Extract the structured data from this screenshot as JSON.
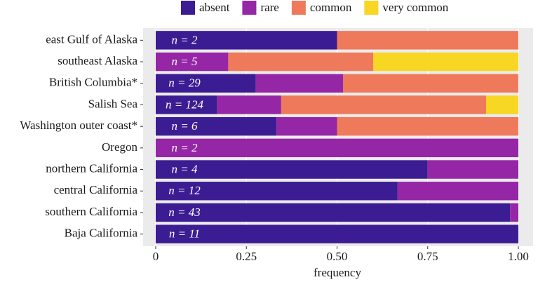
{
  "chart_data": {
    "type": "stacked-bar-horizontal",
    "x_label": "frequency",
    "categories": [
      "east Gulf of Alaska",
      "southeast Alaska",
      "British Columbia*",
      "Salish Sea",
      "Washington outer coast*",
      "Oregon",
      "northern California",
      "central California",
      "southern California",
      "Baja California"
    ],
    "annotations": [
      "n = 2",
      "n = 5",
      "n = 29",
      "n = 124",
      "n = 6",
      "n = 2",
      "n = 4",
      "n = 12",
      "n = 43",
      "n = 11"
    ],
    "series": [
      {
        "name": "absent",
        "color": "#3c1c92",
        "values": [
          0.5,
          0,
          0.276,
          0.169,
          0.333,
          0,
          0.75,
          0.667,
          0.977,
          1
        ]
      },
      {
        "name": "rare",
        "color": "#9526a6",
        "values": [
          0,
          0.2,
          0.241,
          0.177,
          0.167,
          1,
          0.25,
          0.333,
          0.023,
          0
        ]
      },
      {
        "name": "common",
        "color": "#ee7a5b",
        "values": [
          0.5,
          0.4,
          0.483,
          0.565,
          0.5,
          0,
          0,
          0,
          0,
          0
        ]
      },
      {
        "name": "very common",
        "color": "#f8d624",
        "values": [
          0,
          0.4,
          0,
          0.089,
          0,
          0,
          0,
          0,
          0,
          0
        ]
      }
    ],
    "xlim": [
      0,
      1
    ],
    "xticks": [
      0,
      0.25,
      {
        "value": 0.5,
        "label": "0.50"
      },
      0.75,
      {
        "value": 1,
        "label": "1.00"
      }
    ],
    "grid": true,
    "legend": "top"
  }
}
